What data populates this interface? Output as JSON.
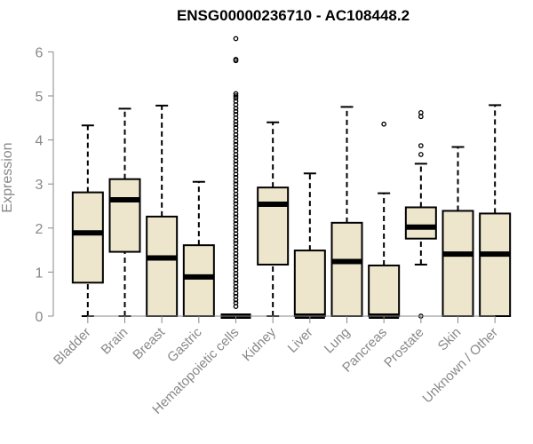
{
  "chart_data": {
    "type": "box",
    "title": "ENSG00000236710 - AC108448.2",
    "xlabel": "",
    "ylabel": "Expression",
    "ylim": [
      0,
      6
    ],
    "yticks": [
      0,
      1,
      2,
      3,
      4,
      5,
      6
    ],
    "box_fill": "#EDE6CC",
    "line_color": "#000000",
    "axis_color": "#888888",
    "grid": false,
    "categories": [
      "Bladder",
      "Brain",
      "Breast",
      "Gastric",
      "Hematopoietic cells",
      "Kidney",
      "Liver",
      "Lung",
      "Pancreas",
      "Prostate",
      "Skin",
      "Unknown / Other"
    ],
    "boxes": [
      {
        "name": "Bladder",
        "whisker_low": 0,
        "q1": 0.76,
        "median": 1.89,
        "q3": 2.81,
        "whisker_high": 4.33,
        "outliers": []
      },
      {
        "name": "Brain",
        "whisker_low": 0,
        "q1": 1.46,
        "median": 2.64,
        "q3": 3.11,
        "whisker_high": 4.71,
        "outliers": []
      },
      {
        "name": "Breast",
        "whisker_low": 0,
        "q1": 0,
        "median": 1.32,
        "q3": 2.26,
        "whisker_high": 4.78,
        "outliers": []
      },
      {
        "name": "Gastric",
        "whisker_low": 0,
        "q1": 0,
        "median": 0.89,
        "q3": 1.61,
        "whisker_high": 3.05,
        "outliers": []
      },
      {
        "name": "Hematopoietic cells",
        "whisker_low": 0,
        "q1": 0,
        "median": 0,
        "q3": 0,
        "whisker_high": 0,
        "outliers": [
          6.3,
          5.83,
          5.8,
          5.05,
          5.0,
          4.95,
          4.88,
          4.8,
          4.72,
          4.65,
          4.58,
          4.5,
          4.42,
          4.35,
          4.28,
          4.2,
          4.12,
          4.05,
          3.97,
          3.9,
          3.82,
          3.75,
          3.67,
          3.6,
          3.52,
          3.45,
          3.37,
          3.3,
          3.22,
          3.15,
          3.07,
          3.0,
          2.92,
          2.85,
          2.77,
          2.7,
          2.62,
          2.55,
          2.47,
          2.4,
          2.32,
          2.25,
          2.17,
          2.1,
          2.02,
          1.95,
          1.87,
          1.8,
          1.72,
          1.65,
          1.57,
          1.5,
          1.42,
          1.35,
          1.27,
          1.2,
          1.12,
          1.05,
          0.97,
          0.9,
          0.82,
          0.75,
          0.67,
          0.6,
          0.52,
          0.45,
          0.37,
          0.3,
          0.22
        ]
      },
      {
        "name": "Kidney",
        "whisker_low": 0,
        "q1": 1.17,
        "median": 2.54,
        "q3": 2.92,
        "whisker_high": 4.4,
        "outliers": []
      },
      {
        "name": "Liver",
        "whisker_low": 0,
        "q1": 0,
        "median": 0,
        "q3": 1.49,
        "whisker_high": 3.24,
        "outliers": []
      },
      {
        "name": "Lung",
        "whisker_low": 0,
        "q1": 0,
        "median": 1.24,
        "q3": 2.12,
        "whisker_high": 4.75,
        "outliers": []
      },
      {
        "name": "Pancreas",
        "whisker_low": 0,
        "q1": 0,
        "median": 0,
        "q3": 1.15,
        "whisker_high": 2.79,
        "outliers": [
          4.36
        ]
      },
      {
        "name": "Prostate",
        "whisker_low": 1.17,
        "q1": 1.76,
        "median": 2.02,
        "q3": 2.47,
        "whisker_high": 3.46,
        "outliers": [
          0,
          3.67,
          3.87,
          4.53,
          4.62
        ]
      },
      {
        "name": "Skin",
        "whisker_low": 0,
        "q1": 0,
        "median": 1.41,
        "q3": 2.39,
        "whisker_high": 3.84,
        "outliers": []
      },
      {
        "name": "Unknown / Other",
        "whisker_low": 0,
        "q1": 0,
        "median": 1.41,
        "q3": 2.33,
        "whisker_high": 4.79,
        "outliers": []
      }
    ]
  }
}
